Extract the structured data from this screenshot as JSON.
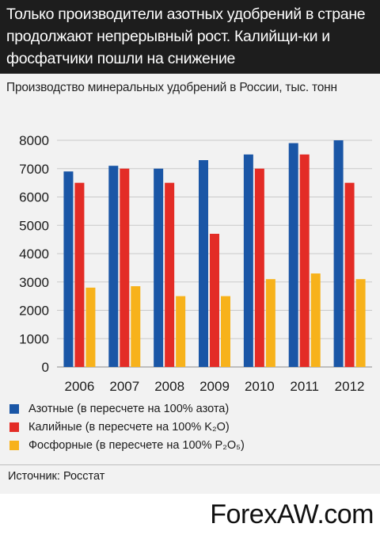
{
  "header": {
    "title": "Только производители  азотных удобрений в стране продолжают непрерывный рост. Калийщи-ки и фосфатчики пошли на снижение"
  },
  "chart_data": {
    "type": "bar",
    "title": "Производство минеральных удобрений в России, тыс. тонн",
    "categories": [
      "2006",
      "2007",
      "2008",
      "2009",
      "2010",
      "2011",
      "2012"
    ],
    "ylim": [
      0,
      8000
    ],
    "yticks": [
      0,
      1000,
      2000,
      3000,
      4000,
      5000,
      6000,
      7000,
      8000
    ],
    "grid": true,
    "legend_position": "bottom",
    "series": [
      {
        "name": "Азотные (в пересчете на 100% азота)",
        "color": "#1a56a6",
        "values": [
          6900,
          7100,
          7000,
          7300,
          7500,
          7900,
          8000
        ]
      },
      {
        "name": "Калийные (в пересчете на 100% K₂O)",
        "color": "#e32c26",
        "values": [
          6500,
          7000,
          6500,
          4700,
          7000,
          7500,
          6500
        ]
      },
      {
        "name": "Фосфорные (в пересчете на 100% P₂O₅)",
        "color": "#f7b21b",
        "values": [
          2800,
          2850,
          2500,
          2500,
          3100,
          3300,
          3100
        ]
      }
    ]
  },
  "source": "Источник: Росстат",
  "watermark": "ForexAW.com"
}
